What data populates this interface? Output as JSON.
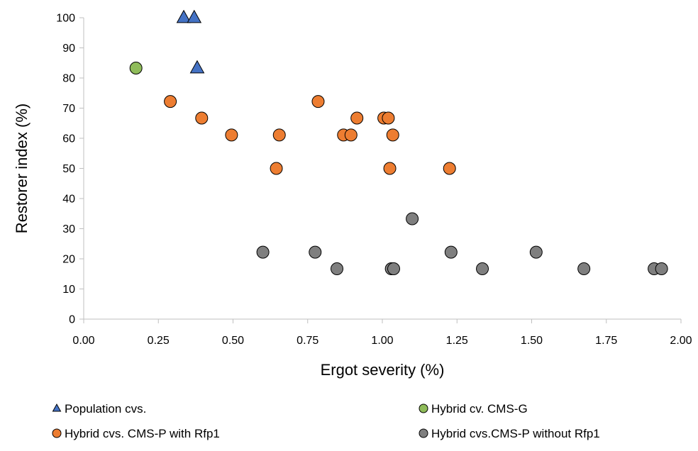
{
  "chart_data": {
    "type": "scatter",
    "title": "",
    "xlabel": "Ergot severity (%)",
    "ylabel": "Restorer index (%)",
    "xlim": [
      0,
      2
    ],
    "ylim": [
      0,
      100
    ],
    "x_ticks": [
      "0.00",
      "0.25",
      "0.50",
      "0.75",
      "1.00",
      "1.25",
      "1.50",
      "1.75",
      "2.00"
    ],
    "y_ticks": [
      "0",
      "10",
      "20",
      "30",
      "40",
      "50",
      "60",
      "70",
      "80",
      "90",
      "100"
    ],
    "grid": "none",
    "legend_position": "bottom",
    "series": [
      {
        "name": "Population cvs.",
        "marker": "triangle",
        "color": "#4472c4",
        "points": [
          [
            0.335,
            100
          ],
          [
            0.37,
            100
          ],
          [
            0.38,
            83.3
          ]
        ]
      },
      {
        "name": "Hybrid cv. CMS-G",
        "marker": "circle",
        "color": "#8fbc5a",
        "points": [
          [
            0.175,
            83.3
          ]
        ]
      },
      {
        "name": "Hybrid cvs. CMS-P with Rfp1",
        "marker": "circle",
        "color": "#ed7d31",
        "points": [
          [
            0.29,
            72.2
          ],
          [
            0.395,
            66.7
          ],
          [
            0.495,
            61.1
          ],
          [
            0.645,
            50
          ],
          [
            0.655,
            61.1
          ],
          [
            0.785,
            72.2
          ],
          [
            0.87,
            61.1
          ],
          [
            0.895,
            61.1
          ],
          [
            0.915,
            66.7
          ],
          [
            1.005,
            66.7
          ],
          [
            1.02,
            66.7
          ],
          [
            1.025,
            50
          ],
          [
            1.035,
            61.1
          ],
          [
            1.225,
            50
          ]
        ]
      },
      {
        "name": "Hybrid cvs.CMS-P without Rfp1",
        "marker": "circle",
        "color": "#7f7f7f",
        "points": [
          [
            0.6,
            22.2
          ],
          [
            0.775,
            22.2
          ],
          [
            0.848,
            16.7
          ],
          [
            1.03,
            16.7
          ],
          [
            1.038,
            16.7
          ],
          [
            1.1,
            33.3
          ],
          [
            1.23,
            22.2
          ],
          [
            1.335,
            16.7
          ],
          [
            1.515,
            22.2
          ],
          [
            1.675,
            16.7
          ],
          [
            1.91,
            16.7
          ],
          [
            1.935,
            16.7
          ]
        ]
      }
    ]
  }
}
